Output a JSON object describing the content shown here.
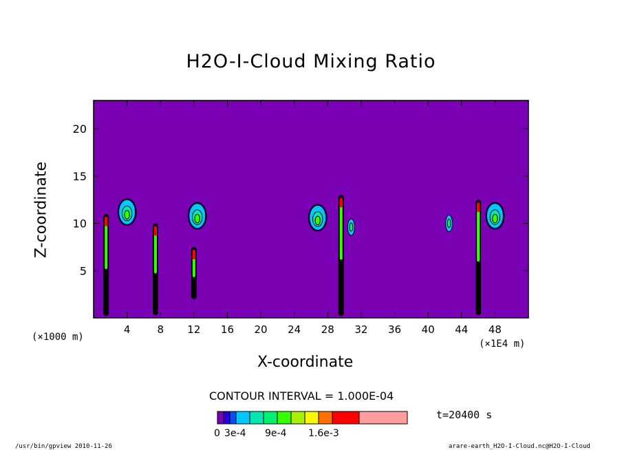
{
  "chart_data": {
    "type": "heatmap",
    "title": "H2O-I-Cloud Mixing Ratio",
    "xlabel": "X-coordinate",
    "ylabel": "Z-coordinate",
    "x_unit_left": "(×1000 m)",
    "x_unit_right": "(×1E4 m)",
    "xlim": [
      0,
      52
    ],
    "ylim": [
      0,
      23
    ],
    "x_ticks": [
      4,
      8,
      12,
      16,
      20,
      24,
      28,
      32,
      36,
      40,
      44,
      48
    ],
    "y_ticks": [
      5,
      10,
      15,
      20
    ],
    "background_color": "#7a00b4",
    "contour_interval": "CONTOUR INTERVAL = 1.000E-04",
    "time": "t=20400 s",
    "colorbar": {
      "colors": [
        "#7a00b4",
        "#2a00d8",
        "#0050ff",
        "#00c8ff",
        "#00e8b0",
        "#00f070",
        "#38ff00",
        "#a8f000",
        "#f8f800",
        "#ff7000",
        "#ff0000",
        "#ff9c9c"
      ],
      "labels": [
        "0",
        "3e-4",
        "9e-4",
        "1.6e-3"
      ]
    },
    "clouds": [
      {
        "x": 4.0,
        "z": 11.2,
        "shape": "anvil"
      },
      {
        "x": 12.4,
        "z": 10.8,
        "shape": "anvil"
      },
      {
        "x": 26.8,
        "z": 10.6,
        "shape": "anvil"
      },
      {
        "x": 30.8,
        "z": 9.6,
        "shape": "small"
      },
      {
        "x": 42.5,
        "z": 10.0,
        "shape": "small"
      },
      {
        "x": 48.0,
        "z": 10.8,
        "shape": "anvil"
      }
    ],
    "columns": [
      {
        "x": 1.5,
        "bottom": 0.2,
        "top": 11.0
      },
      {
        "x": 7.4,
        "bottom": 0.3,
        "top": 10.0
      },
      {
        "x": 12.0,
        "bottom": 2.0,
        "top": 7.5
      },
      {
        "x": 29.6,
        "bottom": 0.2,
        "top": 13.0
      },
      {
        "x": 46.0,
        "bottom": 0.3,
        "top": 12.5
      }
    ]
  },
  "footer": {
    "left": "/usr/bin/gpview  2010-11-26",
    "right": "arare-earth_H2O-I-Cloud.nc@H2O-I-Cloud"
  }
}
